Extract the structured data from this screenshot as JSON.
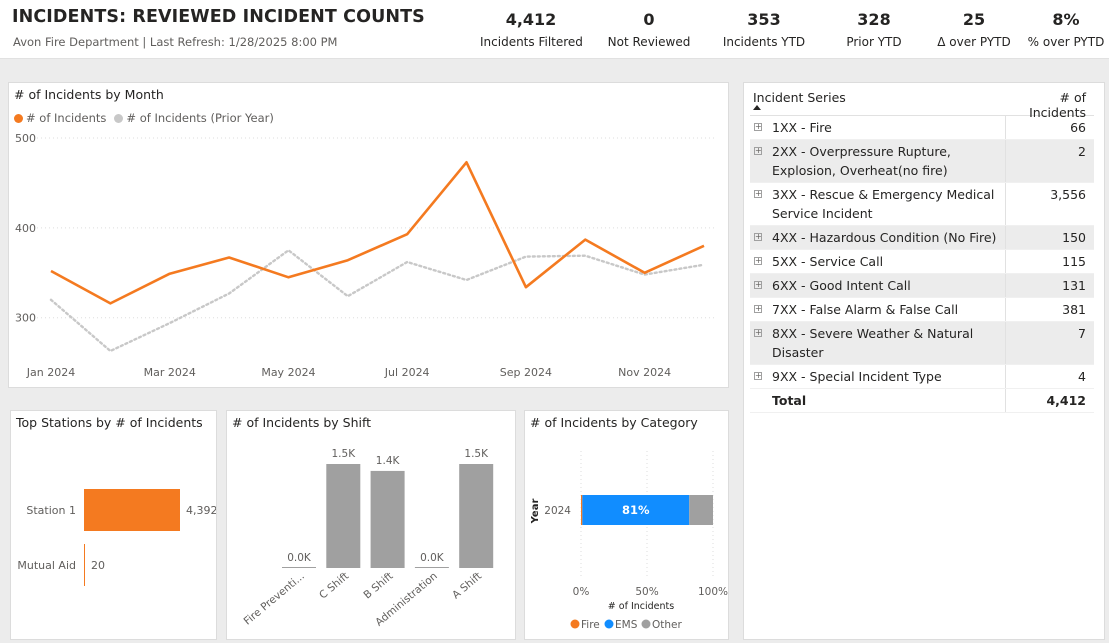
{
  "header": {
    "title": "INCIDENTS: REVIEWED INCIDENT COUNTS",
    "subtitle": "Avon Fire Department | Last Refresh: 1/28/2025 8:00 PM"
  },
  "kpis": [
    {
      "value": "4,412",
      "label": "Incidents Filtered"
    },
    {
      "value": "0",
      "label": "Not Reviewed"
    },
    {
      "value": "353",
      "label": "Incidents YTD"
    },
    {
      "value": "328",
      "label": "Prior YTD"
    },
    {
      "value": "25",
      "label": "Δ over PYTD"
    },
    {
      "value": "8%",
      "label": "% over PYTD"
    }
  ],
  "colors": {
    "orange": "#f47a20",
    "gray": "#a0a0a0",
    "prior": "#c8c8c8",
    "blue": "#118dff"
  },
  "monthly": {
    "title": "# of Incidents by Month",
    "legend": [
      "# of Incidents",
      "# of Incidents (Prior Year)"
    ]
  },
  "stations": {
    "title": "Top Stations by # of Incidents"
  },
  "shift": {
    "title": "# of Incidents by Shift"
  },
  "category": {
    "title": "# of Incidents by Category"
  },
  "chart_data": [
    {
      "type": "line",
      "title": "# of Incidents by Month",
      "x": [
        "Jan 2024",
        "Feb 2024",
        "Mar 2024",
        "Apr 2024",
        "May 2024",
        "Jun 2024",
        "Jul 2024",
        "Aug 2024",
        "Sep 2024",
        "Oct 2024",
        "Nov 2024",
        "Dec 2024"
      ],
      "x_tick_labels": [
        "Jan 2024",
        "Mar 2024",
        "May 2024",
        "Jul 2024",
        "Sep 2024",
        "Nov 2024"
      ],
      "series": [
        {
          "name": "# of Incidents",
          "values": [
            352,
            316,
            349,
            367,
            345,
            364,
            393,
            473,
            334,
            387,
            350,
            380
          ]
        },
        {
          "name": "# of Incidents (Prior Year)",
          "values": [
            320,
            263,
            294,
            327,
            375,
            324,
            362,
            342,
            368,
            369,
            348,
            359
          ]
        }
      ],
      "y_ticks": [
        300,
        400,
        500
      ],
      "ylim": [
        263,
        500
      ],
      "grid": true,
      "legend": "top-left"
    },
    {
      "type": "bar",
      "orientation": "horizontal",
      "title": "Top Stations by # of Incidents",
      "categories": [
        "Station 1",
        "Mutual Aid"
      ],
      "values": [
        4392,
        20
      ],
      "value_labels": [
        "4,392",
        "20"
      ]
    },
    {
      "type": "bar",
      "title": "# of Incidents by Shift",
      "categories": [
        "Fire Preventi...",
        "C Shift",
        "B Shift",
        "Administration",
        "A Shift"
      ],
      "values": [
        0,
        1500,
        1400,
        0,
        1500
      ],
      "value_labels": [
        "0.0K",
        "1.5K",
        "1.4K",
        "0.0K",
        "1.5K"
      ]
    },
    {
      "type": "bar",
      "orientation": "horizontal",
      "stacked": "100%",
      "title": "# of Incidents by Category",
      "categories": [
        "2024"
      ],
      "ylabel": "Year",
      "xlabel": "# of Incidents",
      "x_ticks": [
        "0%",
        "50%",
        "100%"
      ],
      "series": [
        {
          "name": "Fire",
          "values": [
            1
          ]
        },
        {
          "name": "EMS",
          "values": [
            81
          ]
        },
        {
          "name": "Other",
          "values": [
            18
          ]
        }
      ],
      "data_labels": [
        "81%"
      ],
      "legend": "bottom"
    }
  ],
  "table": {
    "headers": [
      "Incident Series",
      "# of Incidents"
    ],
    "rows": [
      {
        "label": "1XX - Fire",
        "value": "66"
      },
      {
        "label": "2XX - Overpressure Rupture, Explosion, Overheat(no fire)",
        "value": "2"
      },
      {
        "label": "3XX - Rescue & Emergency Medical Service Incident",
        "value": "3,556"
      },
      {
        "label": "4XX - Hazardous Condition (No Fire)",
        "value": "150"
      },
      {
        "label": "5XX - Service Call",
        "value": "115"
      },
      {
        "label": "6XX - Good Intent Call",
        "value": "131"
      },
      {
        "label": "7XX - False Alarm & False Call",
        "value": "381"
      },
      {
        "label": "8XX - Severe Weather & Natural Disaster",
        "value": "7"
      },
      {
        "label": "9XX - Special Incident Type",
        "value": "4"
      }
    ],
    "total_label": "Total",
    "total_value": "4,412"
  }
}
